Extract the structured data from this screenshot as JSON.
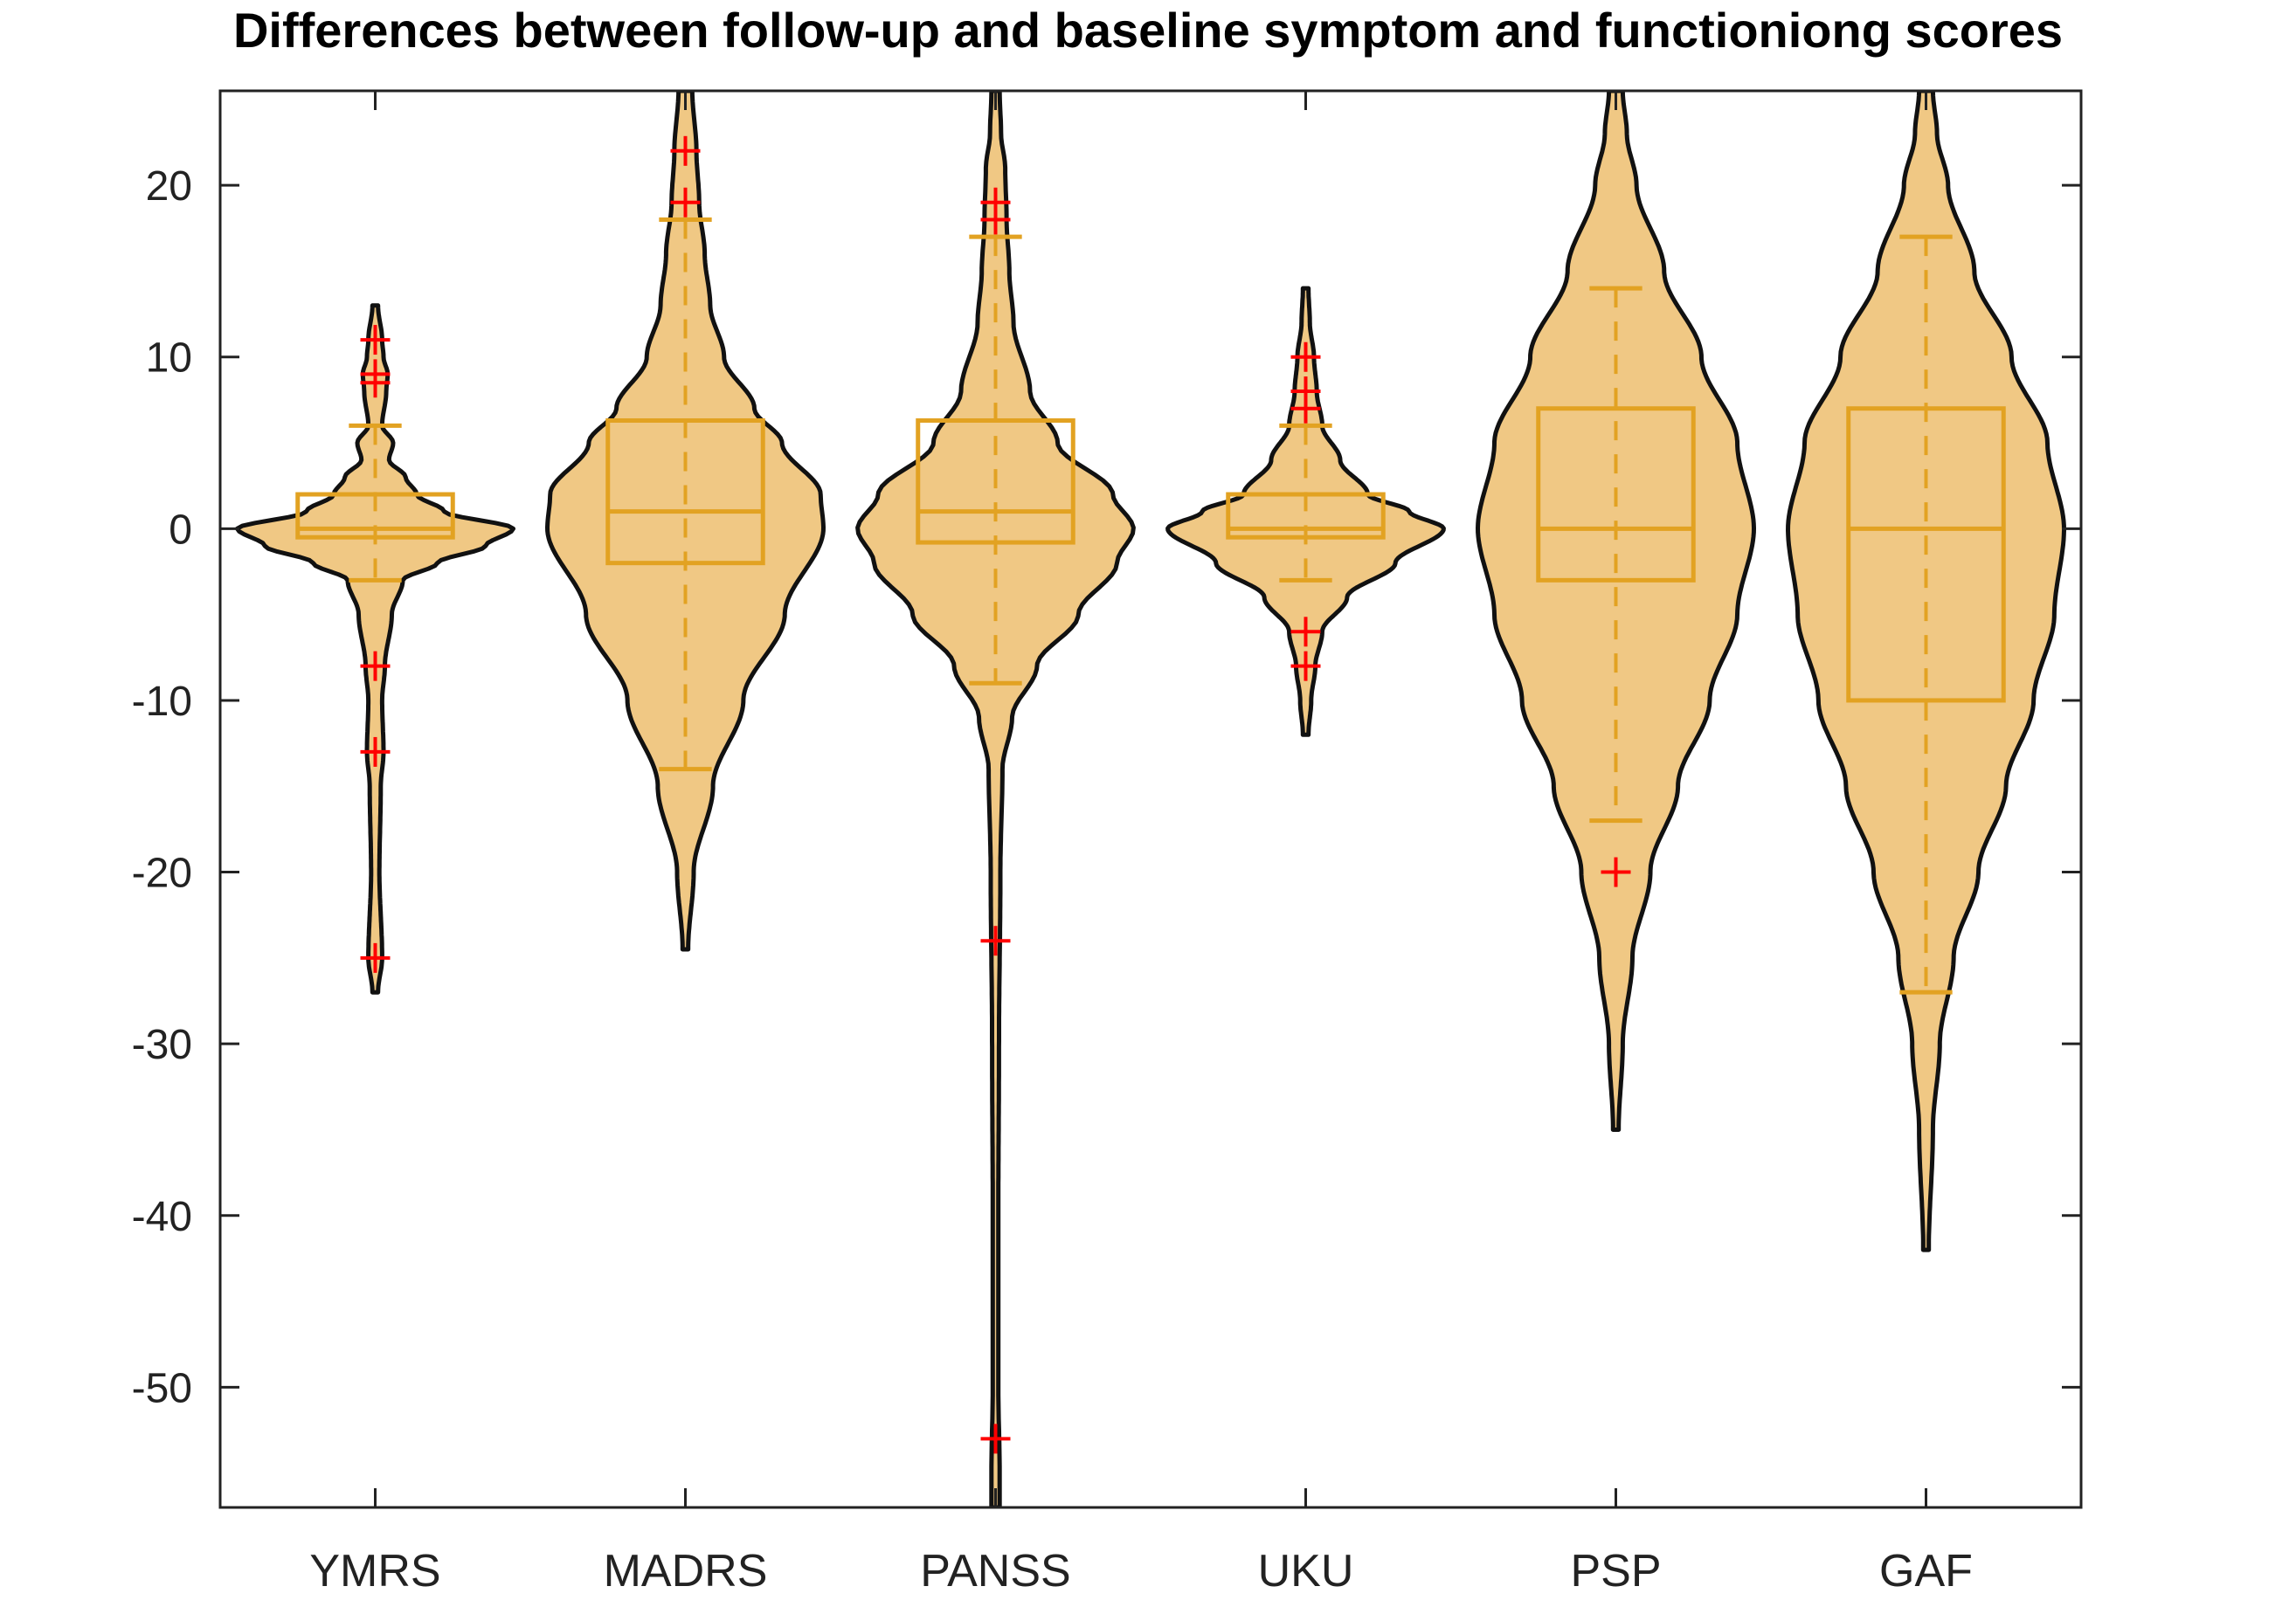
{
  "chart_data": {
    "type": "violin",
    "title": "Differences between follow-up and baseline symptom and functioniong scores",
    "xlabel": "",
    "ylabel": "",
    "ylim": [
      -57,
      25.5
    ],
    "yticks": [
      20,
      10,
      0,
      -10,
      -20,
      -30,
      -40,
      -50
    ],
    "categories": [
      "YMRS",
      "MADRS",
      "PANSS",
      "UKU",
      "PSP",
      "GAF"
    ],
    "colors": {
      "fill": "#f0c884",
      "edge": "#111111",
      "box": "#e2a222",
      "outlier": "#ff0000"
    },
    "series": [
      {
        "name": "YMRS",
        "q1": -0.5,
        "median": 0,
        "q3": 2,
        "whisker_low": -3,
        "whisker_high": 6,
        "outliers": [
          11,
          9,
          8.5,
          -8,
          -13,
          -25
        ],
        "kde_min": -27,
        "kde_max": 13,
        "density": [
          [
            -27,
            0.02
          ],
          [
            -25,
            0.05
          ],
          [
            -20,
            0.03
          ],
          [
            -15,
            0.04
          ],
          [
            -13,
            0.06
          ],
          [
            -10,
            0.05
          ],
          [
            -8,
            0.07
          ],
          [
            -5,
            0.12
          ],
          [
            -3,
            0.2
          ],
          [
            -2,
            0.45
          ],
          [
            -1,
            0.8
          ],
          [
            0,
            1.0
          ],
          [
            1,
            0.5
          ],
          [
            2,
            0.3
          ],
          [
            3,
            0.22
          ],
          [
            4,
            0.1
          ],
          [
            5,
            0.13
          ],
          [
            6,
            0.05
          ],
          [
            8,
            0.08
          ],
          [
            9,
            0.09
          ],
          [
            10,
            0.06
          ],
          [
            11,
            0.05
          ],
          [
            13,
            0.02
          ]
        ]
      },
      {
        "name": "MADRS",
        "q1": -2,
        "median": 1,
        "q3": 6.3,
        "whisker_low": -14,
        "whisker_high": 18,
        "outliers": [
          22,
          19
        ],
        "kde_min": -24.5,
        "kde_max": 25.5,
        "density": [
          [
            -24.5,
            0.02
          ],
          [
            -20,
            0.06
          ],
          [
            -15,
            0.2
          ],
          [
            -10,
            0.42
          ],
          [
            -5,
            0.72
          ],
          [
            0,
            1.0
          ],
          [
            2,
            0.98
          ],
          [
            5,
            0.7
          ],
          [
            7,
            0.5
          ],
          [
            10,
            0.28
          ],
          [
            13,
            0.18
          ],
          [
            16,
            0.14
          ],
          [
            19,
            0.1
          ],
          [
            22,
            0.08
          ],
          [
            25.5,
            0.05
          ]
        ]
      },
      {
        "name": "PANSS",
        "q1": -0.8,
        "median": 1,
        "q3": 6.3,
        "whisker_low": -9,
        "whisker_high": 17,
        "outliers": [
          19,
          18,
          -24,
          -53
        ],
        "kde_min": -57,
        "kde_max": 25.5,
        "density": [
          [
            -57,
            0.03
          ],
          [
            -55,
            0.03
          ],
          [
            -50,
            0.02
          ],
          [
            -40,
            0.02
          ],
          [
            -30,
            0.025
          ],
          [
            -20,
            0.035
          ],
          [
            -14,
            0.05
          ],
          [
            -11,
            0.12
          ],
          [
            -8,
            0.3
          ],
          [
            -5,
            0.6
          ],
          [
            -2,
            0.88
          ],
          [
            0,
            1.0
          ],
          [
            2,
            0.85
          ],
          [
            5,
            0.45
          ],
          [
            8,
            0.25
          ],
          [
            12,
            0.13
          ],
          [
            15,
            0.1
          ],
          [
            18,
            0.08
          ],
          [
            21,
            0.07
          ],
          [
            23,
            0.04
          ],
          [
            25.5,
            0.03
          ]
        ]
      },
      {
        "name": "UKU",
        "q1": -0.5,
        "median": 0,
        "q3": 2,
        "whisker_low": -3,
        "whisker_high": 6,
        "outliers": [
          10,
          8,
          7,
          -6,
          -8
        ],
        "kde_min": -12,
        "kde_max": 14,
        "density": [
          [
            -12,
            0.02
          ],
          [
            -10,
            0.04
          ],
          [
            -8,
            0.07
          ],
          [
            -6,
            0.12
          ],
          [
            -4,
            0.3
          ],
          [
            -2,
            0.65
          ],
          [
            0,
            1.0
          ],
          [
            1,
            0.75
          ],
          [
            2,
            0.45
          ],
          [
            4,
            0.25
          ],
          [
            6,
            0.12
          ],
          [
            8,
            0.08
          ],
          [
            10,
            0.06
          ],
          [
            12,
            0.03
          ],
          [
            14,
            0.02
          ]
        ]
      },
      {
        "name": "PSP",
        "q1": -3,
        "median": 0,
        "q3": 7,
        "whisker_low": -17,
        "whisker_high": 14,
        "outliers": [
          -20
        ],
        "kde_min": -35,
        "kde_max": 25.5,
        "density": [
          [
            -35,
            0.02
          ],
          [
            -30,
            0.05
          ],
          [
            -25,
            0.12
          ],
          [
            -20,
            0.25
          ],
          [
            -15,
            0.45
          ],
          [
            -10,
            0.68
          ],
          [
            -5,
            0.88
          ],
          [
            0,
            1.0
          ],
          [
            5,
            0.88
          ],
          [
            10,
            0.62
          ],
          [
            15,
            0.35
          ],
          [
            20,
            0.15
          ],
          [
            23,
            0.08
          ],
          [
            25.5,
            0.05
          ]
        ]
      },
      {
        "name": "GAF",
        "q1": -10,
        "median": 0,
        "q3": 7,
        "whisker_low": -27,
        "whisker_high": 17,
        "outliers": [],
        "kde_min": -42,
        "kde_max": 25.5,
        "density": [
          [
            -42,
            0.02
          ],
          [
            -35,
            0.05
          ],
          [
            -30,
            0.1
          ],
          [
            -25,
            0.2
          ],
          [
            -20,
            0.38
          ],
          [
            -15,
            0.58
          ],
          [
            -10,
            0.78
          ],
          [
            -5,
            0.93
          ],
          [
            0,
            1.0
          ],
          [
            5,
            0.88
          ],
          [
            10,
            0.62
          ],
          [
            15,
            0.35
          ],
          [
            20,
            0.16
          ],
          [
            23,
            0.08
          ],
          [
            25.5,
            0.05
          ]
        ]
      }
    ]
  }
}
